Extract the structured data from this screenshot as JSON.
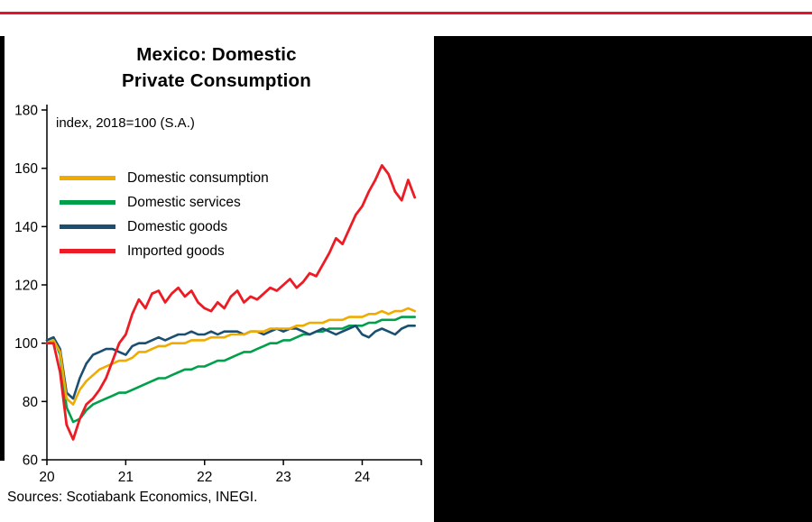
{
  "page": {
    "background": "#ffffff",
    "top_rule_color": "#E8112D",
    "side_panel_color": "#000000"
  },
  "chart_data": {
    "type": "line",
    "title_line1": "Mexico: Domestic",
    "title_line2": "Private Consumption",
    "subtitle": "index, 2018=100 (S.A.)",
    "source": "Sources: Scotiabank Economics, INEGI.",
    "grid": false,
    "legend_position": "inside-top-left",
    "ylim": [
      60,
      180
    ],
    "y_ticks": [
      60,
      80,
      100,
      120,
      140,
      160,
      180
    ],
    "xlim": [
      2020,
      2024.75
    ],
    "x_ticks": [
      {
        "label": "20",
        "value": 2020
      },
      {
        "label": "21",
        "value": 2021
      },
      {
        "label": "22",
        "value": 2022
      },
      {
        "label": "23",
        "value": 2023
      },
      {
        "label": "24",
        "value": 2024
      }
    ],
    "x_start": 2020,
    "x_step_years": 0.0833333,
    "series": [
      {
        "name": "Domestic consumption",
        "color": "#F0AB00",
        "values": [
          100,
          101,
          97,
          81,
          79,
          84,
          87,
          89,
          91,
          92,
          93,
          94,
          94,
          95,
          97,
          97,
          98,
          99,
          99,
          100,
          100,
          100,
          101,
          101,
          101,
          102,
          102,
          102,
          103,
          103,
          103,
          104,
          104,
          104,
          105,
          105,
          105,
          105,
          106,
          106,
          107,
          107,
          107,
          108,
          108,
          108,
          109,
          109,
          109,
          110,
          110,
          111,
          110,
          111,
          111,
          112,
          111
        ]
      },
      {
        "name": "Domestic services",
        "color": "#00A04A",
        "values": [
          101,
          102,
          96,
          78,
          73,
          74,
          77,
          79,
          80,
          81,
          82,
          83,
          83,
          84,
          85,
          86,
          87,
          88,
          88,
          89,
          90,
          91,
          91,
          92,
          92,
          93,
          94,
          94,
          95,
          96,
          97,
          97,
          98,
          99,
          100,
          100,
          101,
          101,
          102,
          103,
          103,
          104,
          104,
          105,
          105,
          105,
          106,
          106,
          106,
          107,
          107,
          108,
          108,
          108,
          109,
          109,
          109
        ]
      },
      {
        "name": "Domestic goods",
        "color": "#1B4F72",
        "values": [
          101,
          102,
          98,
          83,
          81,
          88,
          93,
          96,
          97,
          98,
          98,
          97,
          96,
          99,
          100,
          100,
          101,
          102,
          101,
          102,
          103,
          103,
          104,
          103,
          103,
          104,
          103,
          104,
          104,
          104,
          103,
          104,
          104,
          103,
          104,
          105,
          104,
          105,
          105,
          104,
          103,
          104,
          105,
          104,
          103,
          104,
          105,
          106,
          103,
          102,
          104,
          105,
          104,
          103,
          105,
          106,
          106
        ]
      },
      {
        "name": "Imported goods",
        "color": "#ED1C24",
        "values": [
          100,
          100,
          90,
          72,
          67,
          74,
          79,
          81,
          84,
          88,
          94,
          100,
          103,
          110,
          115,
          112,
          117,
          118,
          114,
          117,
          119,
          116,
          118,
          114,
          112,
          111,
          114,
          112,
          116,
          118,
          114,
          116,
          115,
          117,
          119,
          118,
          120,
          122,
          119,
          121,
          124,
          123,
          127,
          131,
          136,
          134,
          139,
          144,
          147,
          152,
          156,
          161,
          158,
          152,
          149,
          156,
          150
        ]
      }
    ]
  }
}
